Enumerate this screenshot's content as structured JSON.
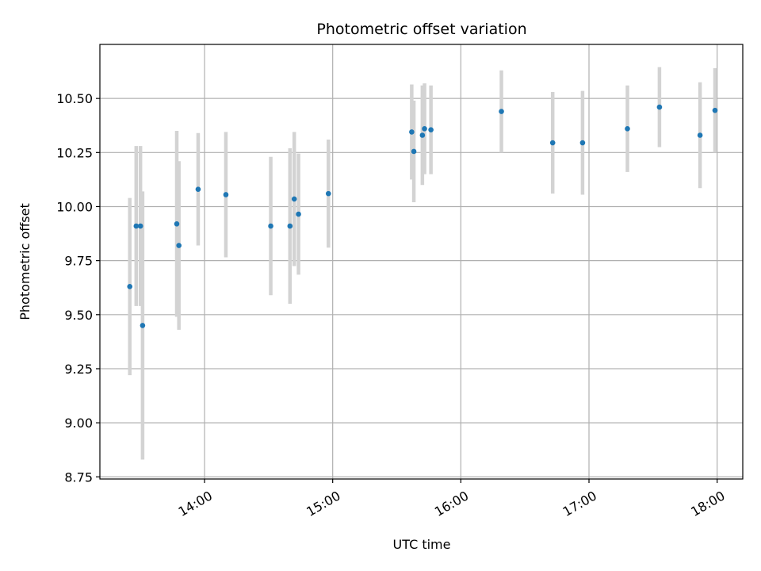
{
  "chart_data": {
    "type": "scatter",
    "title": "Photometric offset variation",
    "xlabel": "UTC time",
    "ylabel": "Photometric offset",
    "x_ticks": [
      "14:00",
      "15:00",
      "16:00",
      "17:00",
      "18:00"
    ],
    "y_ticks": [
      "8.75",
      "9.00",
      "9.25",
      "9.50",
      "9.75",
      "10.00",
      "10.25",
      "10.50"
    ],
    "xlim": [
      "13:11",
      "18:12"
    ],
    "ylim": [
      8.74,
      10.75
    ],
    "grid": true,
    "colors": {
      "marker": "#1f77b4",
      "errorbar": "#d3d3d3",
      "grid": "#b0b0b0"
    },
    "series": [
      {
        "points": [
          {
            "t": "13:25",
            "y": 9.63,
            "err": 0.41
          },
          {
            "t": "13:28",
            "y": 9.91,
            "err": 0.37
          },
          {
            "t": "13:30",
            "y": 9.91,
            "err": 0.37
          },
          {
            "t": "13:31",
            "y": 9.45,
            "err": 0.62
          },
          {
            "t": "13:47",
            "y": 9.92,
            "err": 0.43
          },
          {
            "t": "13:48",
            "y": 9.82,
            "err": 0.39
          },
          {
            "t": "13:57",
            "y": 10.08,
            "err": 0.26
          },
          {
            "t": "14:10",
            "y": 10.055,
            "err": 0.29
          },
          {
            "t": "14:31",
            "y": 9.91,
            "err": 0.32
          },
          {
            "t": "14:40",
            "y": 9.91,
            "err": 0.36
          },
          {
            "t": "14:42",
            "y": 10.035,
            "err": 0.31
          },
          {
            "t": "14:44",
            "y": 9.965,
            "err": 0.28
          },
          {
            "t": "14:58",
            "y": 10.06,
            "err": 0.25
          },
          {
            "t": "15:37",
            "y": 10.345,
            "err": 0.22
          },
          {
            "t": "15:38",
            "y": 10.255,
            "err": 0.235
          },
          {
            "t": "15:42",
            "y": 10.33,
            "err": 0.23
          },
          {
            "t": "15:43",
            "y": 10.36,
            "err": 0.21
          },
          {
            "t": "15:46",
            "y": 10.355,
            "err": 0.205
          },
          {
            "t": "16:19",
            "y": 10.44,
            "err": 0.19
          },
          {
            "t": "16:43",
            "y": 10.295,
            "err": 0.235
          },
          {
            "t": "16:57",
            "y": 10.295,
            "err": 0.24
          },
          {
            "t": "17:18",
            "y": 10.36,
            "err": 0.2
          },
          {
            "t": "17:33",
            "y": 10.46,
            "err": 0.185
          },
          {
            "t": "17:52",
            "y": 10.33,
            "err": 0.245
          },
          {
            "t": "17:59",
            "y": 10.445,
            "err": 0.195
          }
        ]
      }
    ]
  }
}
